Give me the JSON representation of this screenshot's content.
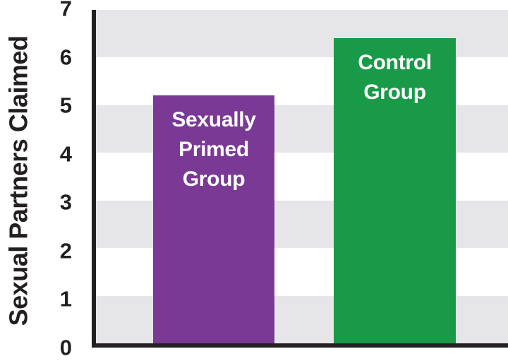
{
  "chart_data": {
    "type": "bar",
    "title": "",
    "xlabel": "",
    "ylabel": "Sexual Partners Claimed",
    "categories": [
      "Sexually Primed Group",
      "Control Group"
    ],
    "values": [
      5.2,
      6.4
    ],
    "bar_colors": [
      "#7b3996",
      "#189a48"
    ],
    "ylim": [
      0,
      7
    ],
    "yticks": [
      0,
      1,
      2,
      3,
      4,
      5,
      6,
      7
    ],
    "legend": "none",
    "grid": "alternating horizontal bands",
    "band_color_shaded": "#e6e6e8",
    "band_color_plain": "#ffffff",
    "axis_color": "#231f20",
    "label_text_color": "#ffffff"
  }
}
